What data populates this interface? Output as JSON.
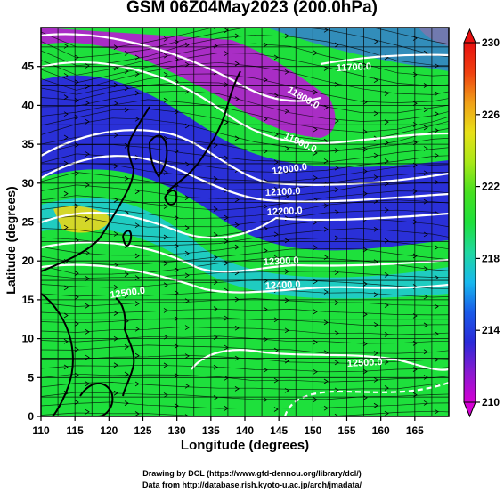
{
  "title": "GSM 06Z04May2023 (200.0hPa)",
  "axes": {
    "xlabel": "Longitude (degrees)",
    "ylabel": "Latitude  (degrees)",
    "xticks": [
      "110",
      "115",
      "120",
      "125",
      "130",
      "135",
      "140",
      "145",
      "150",
      "155",
      "160",
      "165"
    ],
    "xtick_values": [
      110,
      115,
      120,
      125,
      130,
      135,
      140,
      145,
      150,
      155,
      160,
      165
    ],
    "yticks": [
      "0",
      "5",
      "10",
      "15",
      "20",
      "25",
      "30",
      "35",
      "40",
      "45"
    ],
    "ytick_values": [
      0,
      5,
      10,
      15,
      20,
      25,
      30,
      35,
      40,
      45
    ],
    "xlim": [
      110,
      170
    ],
    "ylim": [
      0,
      50
    ]
  },
  "colorbar": {
    "ticks": [
      "230",
      "226",
      "222",
      "218",
      "214",
      "210"
    ],
    "tick_values": [
      230,
      226,
      222,
      218,
      214,
      210
    ],
    "range": [
      210,
      230
    ],
    "colors": [
      "#d400d4",
      "#8a1ad0",
      "#2a2ad8",
      "#1a5ae8",
      "#18b8ee",
      "#20d8a0",
      "#1ee03c",
      "#46e020",
      "#a8e818",
      "#e8e018",
      "#f0a018",
      "#f04010",
      "#e81010"
    ]
  },
  "contours": {
    "labels": [
      "11700.0",
      "11800.0",
      "11900.0",
      "12000.0",
      "12100.0",
      "12200.0",
      "12300.0",
      "12400.0",
      "12500.0",
      "12500.0"
    ]
  },
  "credits": {
    "line1": "Drawing by DCL (https://www.gfd-dennou.org/library/dcl/)",
    "line2": "Data from http://database.rish.kyoto-u.ac.jp/arch/jmadata/"
  }
}
